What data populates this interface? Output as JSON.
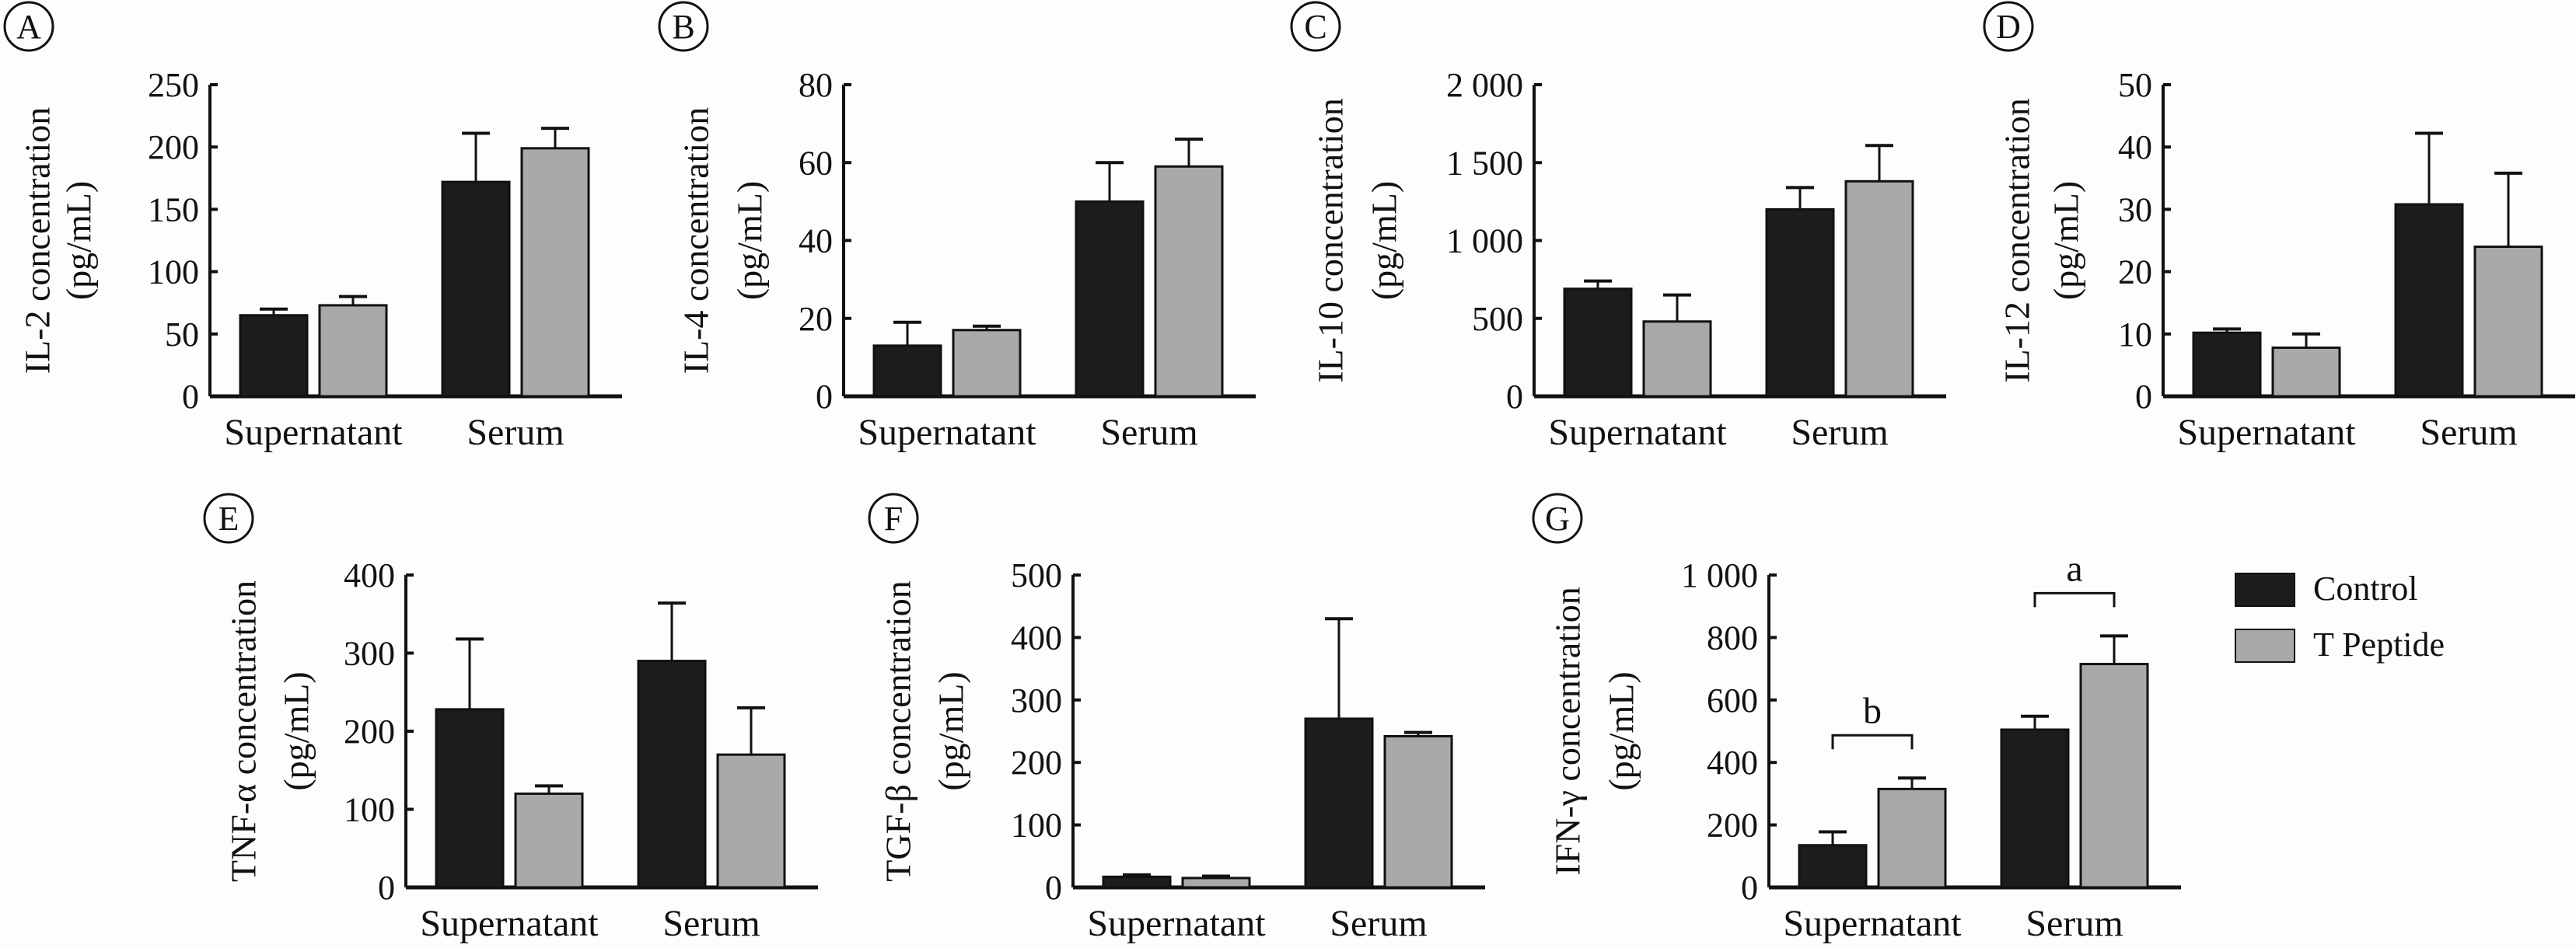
{
  "colors": {
    "control": "#1c1c1c",
    "t_peptide": "#a9a9a9",
    "error_bar": "#111111"
  },
  "legend": [
    {
      "label": "Control",
      "color": "#1c1c1c"
    },
    {
      "label": "T Peptide",
      "color": "#a9a9a9"
    }
  ],
  "chart_data": [
    {
      "panel": "A",
      "type": "bar",
      "ylabel": [
        "IL-2 concentration",
        "(pg/mL)"
      ],
      "categories": [
        "Supernatant",
        "Serum"
      ],
      "ylim": [
        0,
        250
      ],
      "yticks": [
        0,
        50,
        100,
        150,
        200,
        250
      ],
      "ytick_labels": [
        "0",
        "50",
        "100",
        "150",
        "200",
        "250"
      ],
      "series": [
        {
          "name": "Control",
          "values": [
            65,
            172
          ],
          "errors": [
            5,
            39
          ]
        },
        {
          "name": "T Peptide",
          "values": [
            73,
            199
          ],
          "errors": [
            7,
            16
          ]
        }
      ]
    },
    {
      "panel": "B",
      "type": "bar",
      "ylabel": [
        "IL-4 concentration",
        "(pg/mL)"
      ],
      "categories": [
        "Supernatant",
        "Serum"
      ],
      "ylim": [
        0,
        80
      ],
      "yticks": [
        0,
        20,
        40,
        60,
        80
      ],
      "ytick_labels": [
        "0",
        "20",
        "40",
        "60",
        "80"
      ],
      "series": [
        {
          "name": "Control",
          "values": [
            13,
            50
          ],
          "errors": [
            6,
            10
          ]
        },
        {
          "name": "T Peptide",
          "values": [
            17,
            59
          ],
          "errors": [
            1,
            7
          ]
        }
      ]
    },
    {
      "panel": "C",
      "type": "bar",
      "ylabel": [
        "IL-10 concentration",
        "(pg/mL)"
      ],
      "categories": [
        "Supernatant",
        "Serum"
      ],
      "ylim": [
        0,
        2000
      ],
      "yticks": [
        0,
        500,
        1000,
        1500,
        2000
      ],
      "ytick_labels": [
        "0",
        "500",
        "1 000",
        "1 500",
        "2 000"
      ],
      "series": [
        {
          "name": "Control",
          "values": [
            690,
            1200
          ],
          "errors": [
            50,
            140
          ]
        },
        {
          "name": "T Peptide",
          "values": [
            480,
            1380
          ],
          "errors": [
            170,
            230
          ]
        }
      ]
    },
    {
      "panel": "D",
      "type": "bar",
      "ylabel": [
        "IL-12 concentration",
        "(pg/mL)"
      ],
      "categories": [
        "Supernatant",
        "Serum"
      ],
      "ylim": [
        0,
        50
      ],
      "yticks": [
        0,
        10,
        20,
        30,
        40,
        50
      ],
      "ytick_labels": [
        "0",
        "10",
        "20",
        "30",
        "40",
        "50"
      ],
      "series": [
        {
          "name": "Control",
          "values": [
            10.2,
            30.8
          ],
          "errors": [
            0.6,
            11.4
          ]
        },
        {
          "name": "T Peptide",
          "values": [
            7.8,
            24
          ],
          "errors": [
            2.2,
            11.8
          ]
        }
      ]
    },
    {
      "panel": "E",
      "type": "bar",
      "ylabel": [
        "TNF-α concentration",
        "(pg/mL)"
      ],
      "categories": [
        "Supernatant",
        "Serum"
      ],
      "ylim": [
        0,
        400
      ],
      "yticks": [
        0,
        100,
        200,
        300,
        400
      ],
      "ytick_labels": [
        "0",
        "100",
        "200",
        "300",
        "400"
      ],
      "series": [
        {
          "name": "Control",
          "values": [
            228,
            290
          ],
          "errors": [
            90,
            74
          ]
        },
        {
          "name": "T Peptide",
          "values": [
            120,
            170
          ],
          "errors": [
            10,
            60
          ]
        }
      ]
    },
    {
      "panel": "F",
      "type": "bar",
      "ylabel": [
        "TGF-β concentration",
        "(pg/mL)"
      ],
      "categories": [
        "Supernatant",
        "Serum"
      ],
      "ylim": [
        0,
        500
      ],
      "yticks": [
        0,
        100,
        200,
        300,
        400,
        500
      ],
      "ytick_labels": [
        "0",
        "100",
        "200",
        "300",
        "400",
        "500"
      ],
      "series": [
        {
          "name": "Control",
          "values": [
            17,
            270
          ],
          "errors": [
            3,
            160
          ]
        },
        {
          "name": "T Peptide",
          "values": [
            15,
            242
          ],
          "errors": [
            3,
            6
          ]
        }
      ]
    },
    {
      "panel": "G",
      "type": "bar",
      "ylabel": [
        "IFN-γ concentration",
        "(pg/mL)"
      ],
      "categories": [
        "Supernatant",
        "Serum"
      ],
      "ylim": [
        0,
        1000
      ],
      "yticks": [
        0,
        200,
        400,
        600,
        800,
        1000
      ],
      "ytick_labels": [
        "0",
        "200",
        "400",
        "600",
        "800",
        "1 000"
      ],
      "series": [
        {
          "name": "Control",
          "values": [
            135,
            505
          ],
          "errors": [
            43,
            43
          ]
        },
        {
          "name": "T Peptide",
          "values": [
            315,
            715
          ],
          "errors": [
            35,
            90
          ]
        }
      ],
      "annotations": [
        {
          "category": "Supernatant",
          "text": "b"
        },
        {
          "category": "Serum",
          "text": "a"
        }
      ]
    }
  ]
}
